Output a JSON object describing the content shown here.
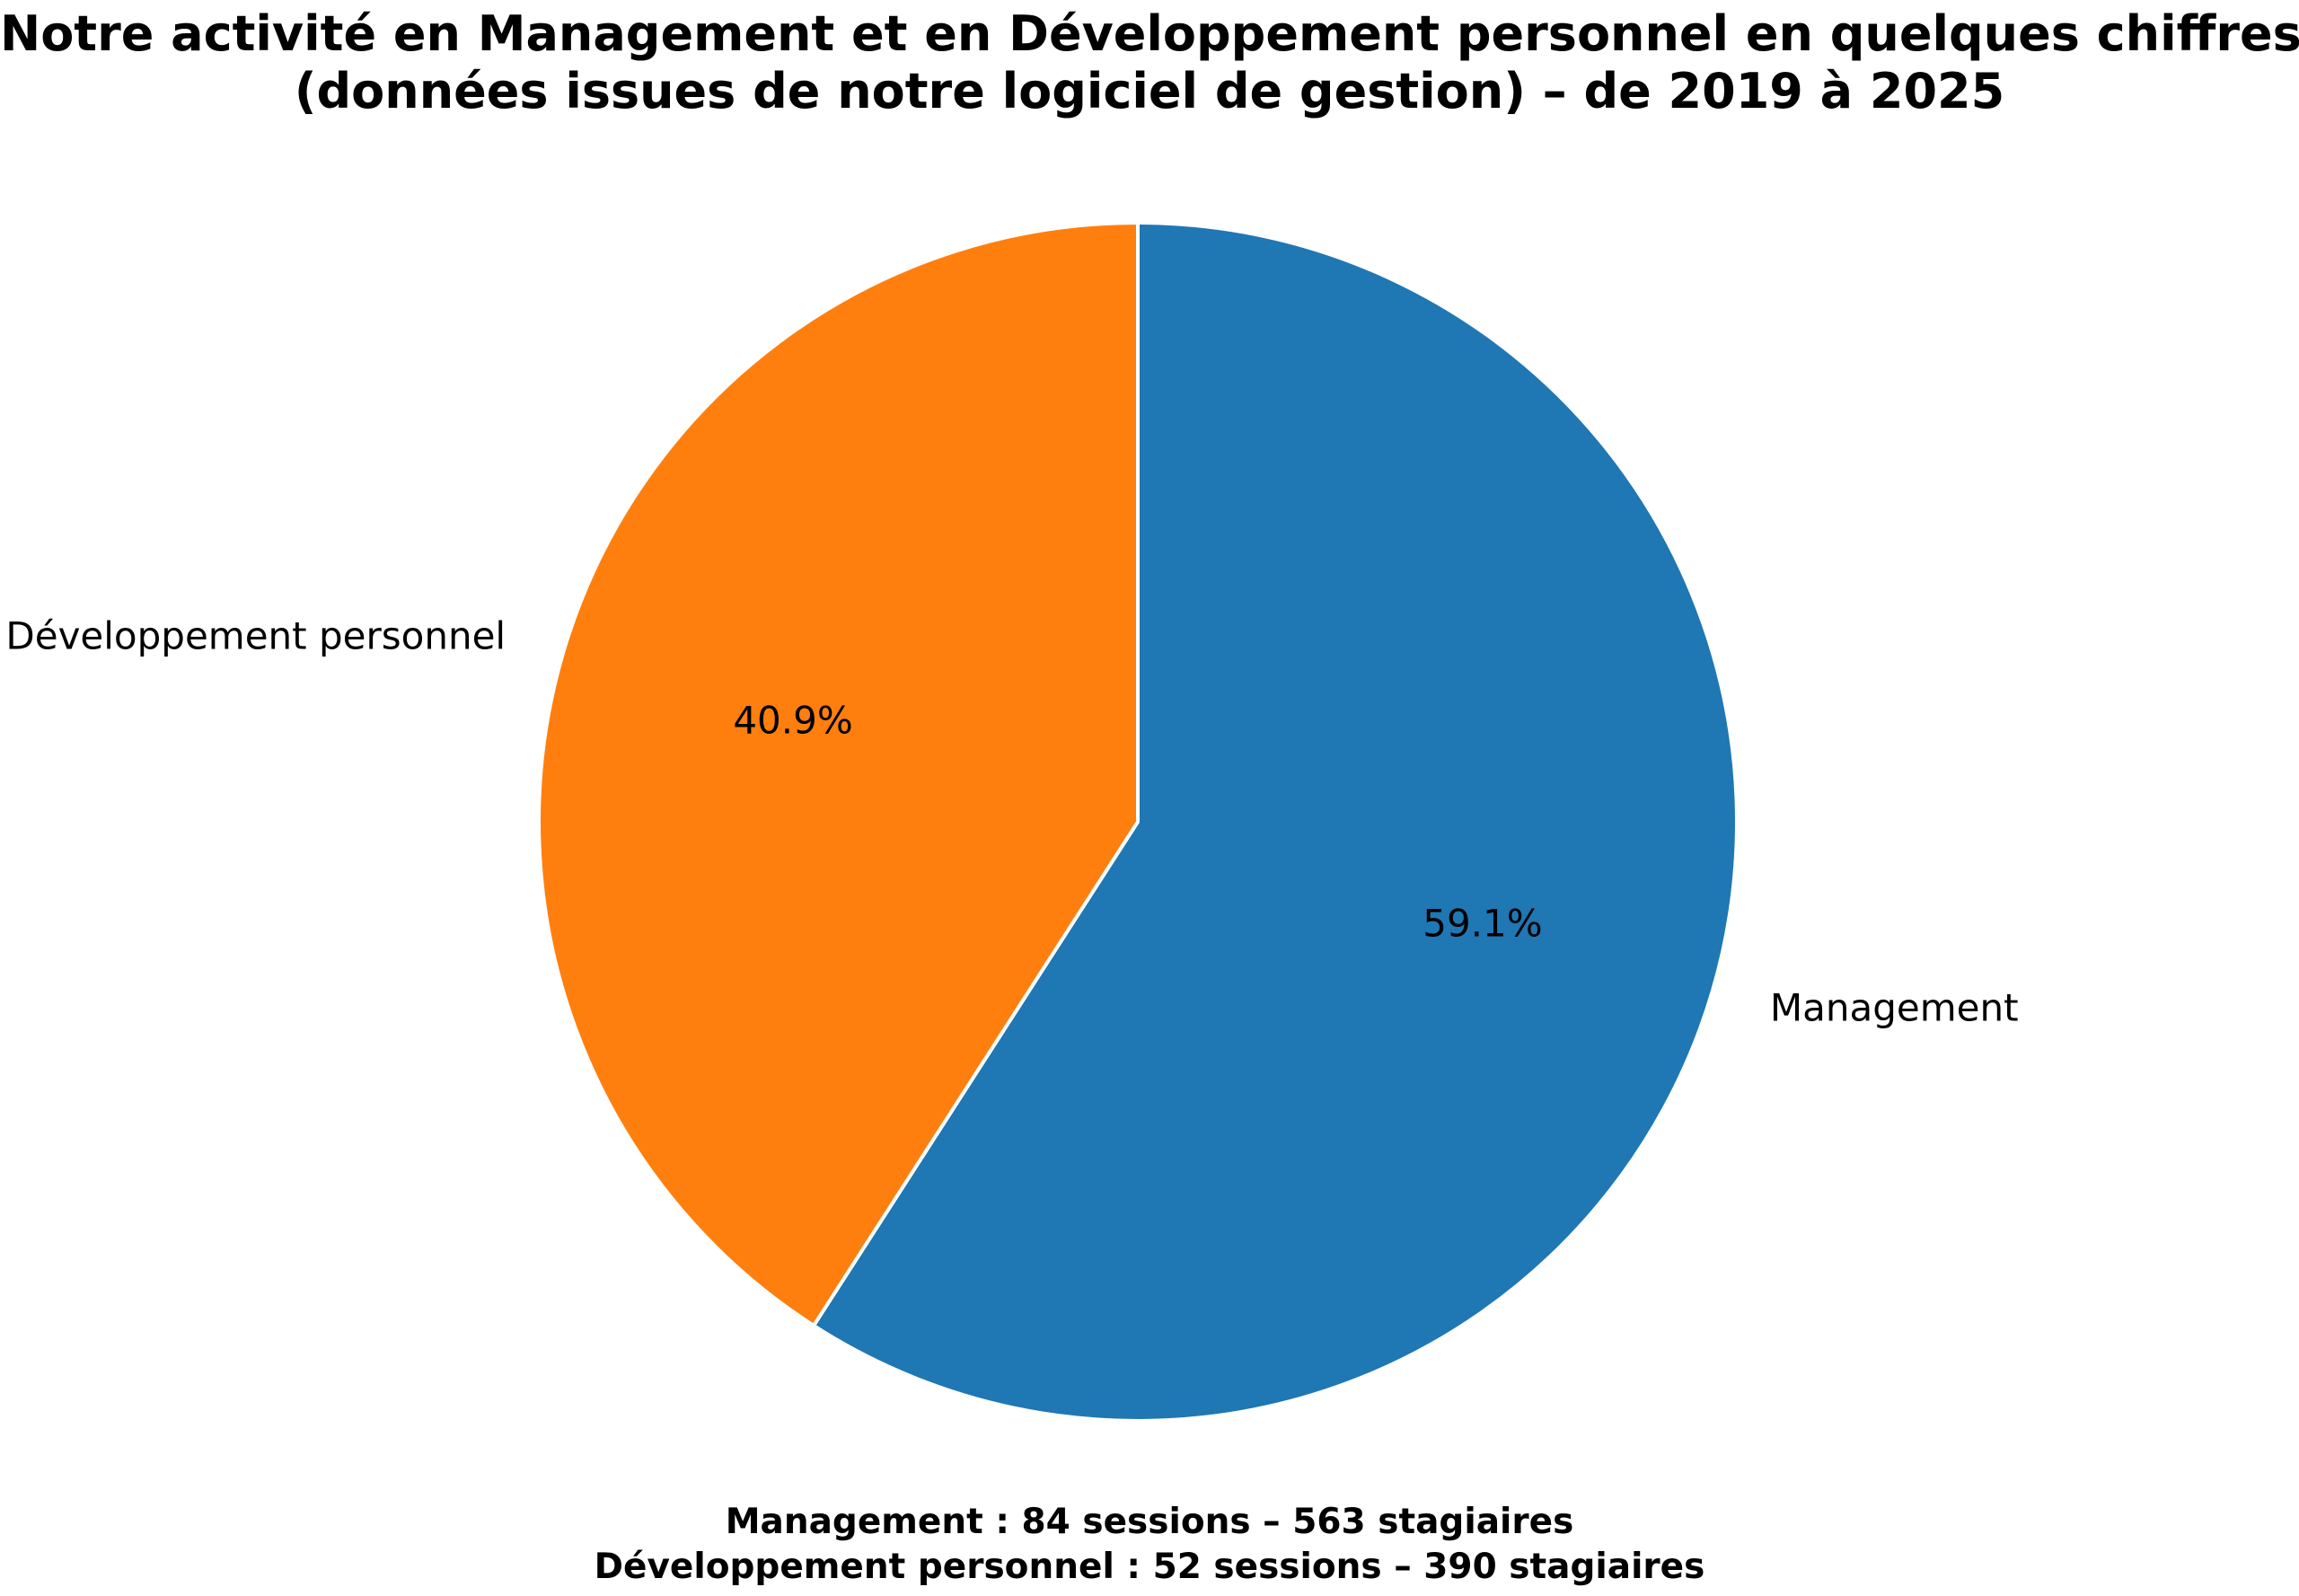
{
  "title": {
    "line1": "Notre activité en Management et en Développement personnel en quelques chiffres",
    "line2": "(données issues de notre logiciel de gestion) – de 2019 à 2025"
  },
  "chart_data": {
    "type": "pie",
    "slices": [
      {
        "label": "Management",
        "percent": 59.1,
        "pct_label": "59.1%",
        "color": "#1f77b4",
        "sessions": 84,
        "stagiaires": 563
      },
      {
        "label": "Développement personnel",
        "percent": 40.9,
        "pct_label": "40.9%",
        "color": "#ff7f0e",
        "sessions": 52,
        "stagiaires": 390
      }
    ],
    "start_angle_deg": 90,
    "direction": "clockwise",
    "edge_color": "#ffffff",
    "legend": "none"
  },
  "footer": {
    "line1": "Management : 84 sessions – 563 stagiaires",
    "line2": "Développement personnel : 52 sessions – 390 stagiaires"
  }
}
